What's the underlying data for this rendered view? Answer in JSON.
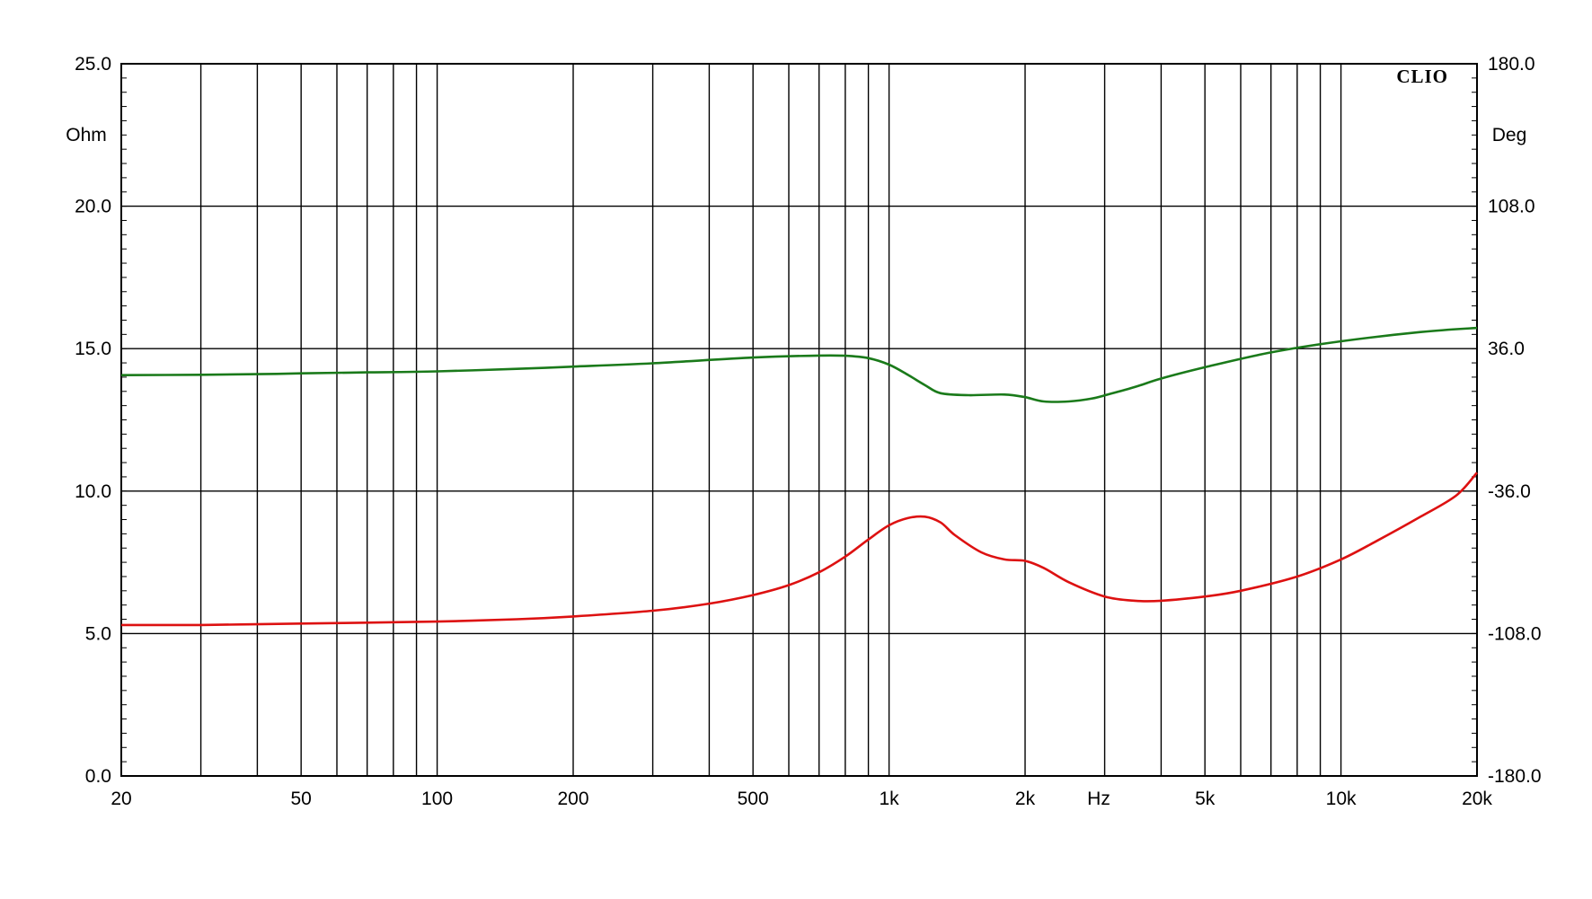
{
  "chart_data": {
    "type": "line",
    "brand": "CLIO",
    "x_unit": "Hz",
    "y_left_unit": "Ohm",
    "y_right_unit": "Deg",
    "x_scale": "log",
    "xlim": [
      20,
      20000
    ],
    "ylim_left": [
      0,
      25
    ],
    "ylim_right": [
      -180,
      180
    ],
    "grid": true,
    "x_ticks": [
      {
        "value": 20,
        "label": "20"
      },
      {
        "value": 50,
        "label": "50"
      },
      {
        "value": 100,
        "label": "100"
      },
      {
        "value": 200,
        "label": "200"
      },
      {
        "value": 500,
        "label": "500"
      },
      {
        "value": 1000,
        "label": "1k"
      },
      {
        "value": 2000,
        "label": "2k"
      },
      {
        "value": 5000,
        "label": "5k"
      },
      {
        "value": 10000,
        "label": "10k"
      },
      {
        "value": 20000,
        "label": "20k"
      }
    ],
    "y_left_ticks": [
      "0.0",
      "5.0",
      "10.0",
      "15.0",
      "20.0",
      "25.0"
    ],
    "y_right_ticks": [
      "-180.0",
      "-108.0",
      "-36.0",
      "36.0",
      "108.0",
      "180.0"
    ],
    "series": [
      {
        "color": "#dd1111",
        "axis": "left",
        "x": [
          20,
          30,
          50,
          70,
          100,
          150,
          200,
          300,
          400,
          500,
          600,
          700,
          800,
          900,
          1000,
          1100,
          1200,
          1300,
          1400,
          1600,
          1800,
          2000,
          2200,
          2500,
          3000,
          3500,
          4000,
          5000,
          6000,
          8000,
          10000,
          12000,
          15000,
          18000,
          20000
        ],
        "values": [
          5.3,
          5.3,
          5.35,
          5.38,
          5.42,
          5.5,
          5.6,
          5.8,
          6.05,
          6.35,
          6.7,
          7.15,
          7.7,
          8.3,
          8.8,
          9.05,
          9.1,
          8.9,
          8.45,
          7.85,
          7.6,
          7.55,
          7.3,
          6.8,
          6.3,
          6.15,
          6.15,
          6.3,
          6.5,
          7.0,
          7.6,
          8.25,
          9.1,
          9.85,
          10.65
        ]
      },
      {
        "color": "#1a7a1a",
        "axis": "right",
        "x": [
          20,
          30,
          40,
          50,
          70,
          100,
          150,
          200,
          300,
          500,
          700,
          800,
          900,
          1000,
          1100,
          1200,
          1300,
          1500,
          1800,
          2000,
          2200,
          2500,
          2800,
          3000,
          3500,
          4000,
          5000,
          7000,
          10000,
          15000,
          20000
        ],
        "values": [
          22.6,
          22.8,
          23.1,
          23.5,
          24.0,
          24.5,
          25.8,
          26.9,
          28.6,
          31.5,
          32.5,
          32.4,
          31.2,
          27.9,
          22.8,
          17.6,
          13.5,
          12.5,
          12.8,
          11.5,
          9.3,
          9.3,
          10.7,
          12.4,
          16.6,
          20.9,
          26.6,
          34.1,
          39.7,
          44.4,
          46.5
        ]
      }
    ]
  }
}
